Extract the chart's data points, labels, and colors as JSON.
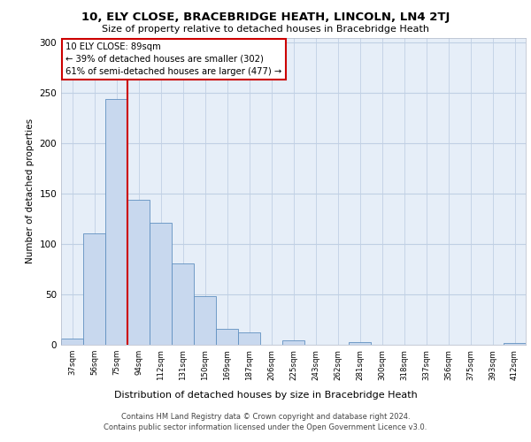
{
  "title1": "10, ELY CLOSE, BRACEBRIDGE HEATH, LINCOLN, LN4 2TJ",
  "title2": "Size of property relative to detached houses in Bracebridge Heath",
  "chart_xlabel": "Distribution of detached houses by size in Bracebridge Heath",
  "ylabel": "Number of detached properties",
  "footer1": "Contains HM Land Registry data © Crown copyright and database right 2024.",
  "footer2": "Contains public sector information licensed under the Open Government Licence v3.0.",
  "annotation_line1": "10 ELY CLOSE: 89sqm",
  "annotation_line2": "← 39% of detached houses are smaller (302)",
  "annotation_line3": "61% of semi-detached houses are larger (477) →",
  "categories": [
    "37sqm",
    "56sqm",
    "75sqm",
    "94sqm",
    "112sqm",
    "131sqm",
    "150sqm",
    "169sqm",
    "187sqm",
    "206sqm",
    "225sqm",
    "243sqm",
    "262sqm",
    "281sqm",
    "300sqm",
    "318sqm",
    "337sqm",
    "356sqm",
    "375sqm",
    "393sqm",
    "412sqm"
  ],
  "values": [
    6,
    111,
    244,
    144,
    121,
    81,
    48,
    16,
    12,
    0,
    4,
    0,
    0,
    3,
    0,
    0,
    0,
    0,
    0,
    0,
    2
  ],
  "bar_color": "#c8d8ee",
  "bar_edge_color": "#6090c0",
  "vline_color": "#cc0000",
  "annotation_box_color": "#cc0000",
  "plot_bg_color": "#e6eef8",
  "grid_color": "#c0d0e4",
  "ylim": [
    0,
    305
  ],
  "yticks": [
    0,
    50,
    100,
    150,
    200,
    250,
    300
  ],
  "vline_position": 2.5
}
